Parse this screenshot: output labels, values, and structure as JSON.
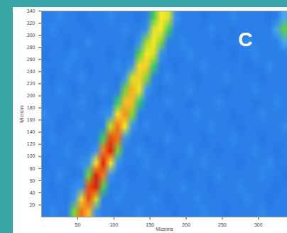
{
  "chart_data": {
    "type": "heatmap",
    "annotation": "C",
    "x_label": "Microns",
    "y_label": "Microns",
    "xlim": [
      0,
      340
    ],
    "ylim": [
      0,
      340
    ],
    "xticks": [
      50,
      100,
      150,
      200,
      250,
      300
    ],
    "yticks": [
      20,
      40,
      60,
      80,
      100,
      120,
      140,
      160,
      180,
      200,
      220,
      240,
      260,
      280,
      300,
      320,
      340
    ],
    "zlim": [
      0,
      10
    ],
    "cells": [
      [
        2,
        2,
        2.3,
        2,
        2,
        1.8,
        2,
        2,
        2,
        2.3,
        2,
        2,
        2,
        1.8,
        2,
        4.5,
        7,
        6.5,
        2.5,
        2,
        2,
        2,
        1.8,
        2,
        2,
        2,
        2.3,
        2,
        2,
        2,
        2,
        1.8,
        2,
        3
      ],
      [
        2,
        2.3,
        2,
        2,
        2,
        2,
        1.8,
        2,
        2,
        2,
        2,
        2.3,
        2,
        2,
        2.5,
        6.5,
        7,
        4.5,
        2,
        2,
        2,
        2,
        2,
        2.3,
        2,
        2,
        1.8,
        2,
        2,
        2,
        2,
        2,
        3,
        5
      ],
      [
        2,
        2,
        2,
        1.8,
        2,
        2,
        2.3,
        2,
        2,
        2,
        2,
        2,
        1.8,
        2.5,
        5.6,
        7,
        5.4,
        2,
        2,
        2.3,
        2,
        2,
        2,
        2,
        1.8,
        2,
        2,
        2,
        2.3,
        2,
        2,
        2,
        2,
        3
      ],
      [
        1.8,
        2,
        2,
        2,
        2.3,
        2,
        2,
        2,
        2,
        1.8,
        2,
        2,
        2,
        4.8,
        7,
        6.3,
        2.5,
        2,
        2,
        2,
        2.3,
        2,
        2,
        2,
        2,
        2,
        1.8,
        2,
        2,
        2.3,
        2,
        2,
        2,
        2
      ],
      [
        2,
        2,
        2,
        2.3,
        2,
        2,
        1.8,
        2,
        2,
        2,
        2.3,
        2,
        2.5,
        7.2,
        7.5,
        4.3,
        2,
        2,
        1.8,
        2,
        2,
        2,
        2.3,
        2,
        2,
        2,
        2,
        2,
        1.8,
        2,
        2,
        2.3,
        2,
        2
      ],
      [
        2,
        1.8,
        2,
        2,
        2,
        2.3,
        2,
        2,
        2,
        2,
        1.8,
        2.5,
        6.2,
        7.5,
        5.3,
        2,
        2,
        2.3,
        2,
        2,
        2,
        1.8,
        2,
        2,
        2,
        2.3,
        2,
        2,
        2,
        2,
        1.8,
        2,
        2,
        2
      ],
      [
        2,
        2,
        2.3,
        2,
        1.8,
        2,
        2,
        2,
        2.3,
        2,
        2,
        5.2,
        8,
        6.8,
        2.5,
        2,
        1.8,
        2,
        2,
        2,
        2.3,
        2,
        2,
        2,
        2,
        1.8,
        2,
        2,
        2,
        2.3,
        2,
        2,
        2,
        2
      ],
      [
        2,
        2,
        2,
        2,
        2,
        2.3,
        2,
        1.8,
        2,
        2,
        4,
        7.8,
        7.8,
        4,
        2,
        2,
        2,
        2.3,
        2,
        2,
        1.8,
        2,
        2,
        2,
        2.3,
        2,
        2,
        2,
        2,
        1.8,
        2,
        2,
        2.3,
        2
      ],
      [
        2.3,
        2,
        2,
        1.8,
        2,
        2,
        2,
        2,
        2.3,
        2.5,
        7.2,
        8.5,
        5.4,
        2,
        2,
        2,
        2,
        1.8,
        2,
        2,
        2,
        2.3,
        2,
        2,
        2,
        2,
        1.8,
        2,
        2,
        2,
        2.3,
        2,
        2,
        2
      ],
      [
        2,
        2,
        1.8,
        2,
        2,
        2.3,
        2,
        2,
        2,
        6,
        9,
        7,
        2.5,
        2,
        2.3,
        2,
        2,
        2,
        1.8,
        2,
        2,
        2,
        2,
        2.3,
        2,
        2,
        2,
        1.8,
        2,
        2,
        2,
        2,
        2,
        2.3
      ],
      [
        2,
        2.3,
        2,
        2,
        2,
        1.8,
        2,
        2,
        4.5,
        9.5,
        9,
        2.5,
        2,
        2,
        1.8,
        2,
        2,
        2.3,
        2,
        2,
        2,
        2,
        1.8,
        2,
        2,
        2,
        2.3,
        2,
        2,
        2,
        1.8,
        2,
        2,
        2
      ],
      [
        2,
        2,
        2,
        2.3,
        2,
        2,
        2,
        2.5,
        8.8,
        10,
        5.2,
        2,
        2,
        2.3,
        2,
        2,
        1.8,
        2,
        2,
        2,
        2.3,
        2,
        2,
        2,
        1.8,
        2,
        2,
        2,
        2,
        2.3,
        2,
        2,
        1.8,
        2
      ],
      [
        1.8,
        2,
        2,
        2,
        2,
        2.3,
        2.5,
        7,
        10,
        7,
        2.5,
        2,
        2,
        2,
        2.3,
        2,
        2,
        2,
        1.8,
        2,
        2,
        2,
        2.3,
        2,
        2,
        2,
        2,
        1.8,
        2,
        2,
        2,
        2.3,
        2,
        2
      ],
      [
        2,
        2,
        2.3,
        2,
        1.8,
        2,
        5.2,
        10,
        8.8,
        2.5,
        2,
        2,
        1.8,
        2,
        2,
        2,
        2.3,
        2,
        2,
        2,
        1.8,
        2,
        2,
        2,
        2.3,
        2,
        2,
        2,
        2,
        2,
        2.3,
        2,
        2,
        1.8
      ],
      [
        2,
        1.8,
        2,
        2,
        2.3,
        2.5,
        9.4,
        10,
        4.6,
        2,
        2,
        2.3,
        2,
        2,
        2,
        1.8,
        2,
        2,
        2,
        2.3,
        2,
        2,
        2,
        1.8,
        2,
        2,
        2,
        2.3,
        2,
        2,
        2,
        2,
        1.8,
        2
      ],
      [
        2,
        2,
        2,
        1.8,
        2.5,
        7.3,
        9.5,
        6.2,
        2,
        2,
        2.3,
        2,
        2,
        2,
        2,
        2.3,
        2,
        1.8,
        2,
        2,
        2,
        2.3,
        2,
        2,
        2,
        2,
        2,
        2,
        2.3,
        2,
        2,
        1.8,
        2,
        2
      ],
      [
        2,
        2.3,
        2,
        2,
        5.3,
        9,
        7.8,
        2.5,
        2,
        2,
        1.8,
        2,
        2,
        2.3,
        2,
        2,
        2,
        2,
        1.8,
        2,
        2,
        2,
        2.3,
        2,
        2,
        1.8,
        2,
        2,
        2,
        2,
        2.3,
        2,
        2,
        2
      ]
    ]
  }
}
